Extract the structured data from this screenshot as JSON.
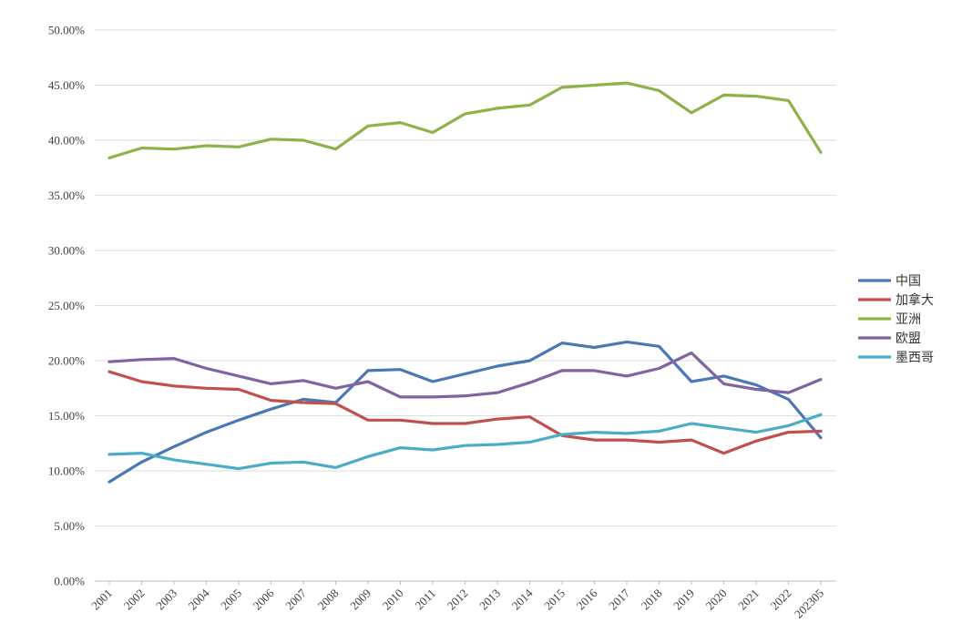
{
  "chart_data": {
    "type": "line",
    "categories": [
      "2001",
      "2002",
      "2003",
      "2004",
      "2005",
      "2006",
      "2007",
      "2008",
      "2009",
      "2010",
      "2011",
      "2012",
      "2013",
      "2014",
      "2015",
      "2016",
      "2017",
      "2018",
      "2019",
      "2020",
      "2021",
      "2022",
      "202305"
    ],
    "ylim": [
      0,
      50
    ],
    "yticks": [
      "0.00%",
      "5.00%",
      "10.00%",
      "15.00%",
      "20.00%",
      "25.00%",
      "30.00%",
      "35.00%",
      "40.00%",
      "45.00%",
      "50.00%"
    ],
    "grid": true,
    "legend_position": "right",
    "series": [
      {
        "name": "中国",
        "color": "#4a78b4",
        "values": [
          9.0,
          10.8,
          12.2,
          13.5,
          14.6,
          15.6,
          16.5,
          16.2,
          19.1,
          19.2,
          18.1,
          18.8,
          19.5,
          20.0,
          21.6,
          21.2,
          21.7,
          21.3,
          18.1,
          18.6,
          17.8,
          16.5,
          13.0
        ]
      },
      {
        "name": "加拿大",
        "color": "#c0504d",
        "values": [
          19.0,
          18.1,
          17.7,
          17.5,
          17.4,
          16.4,
          16.2,
          16.1,
          14.6,
          14.6,
          14.3,
          14.3,
          14.7,
          14.9,
          13.2,
          12.8,
          12.8,
          12.6,
          12.8,
          11.6,
          12.7,
          13.5,
          13.6
        ]
      },
      {
        "name": "亚洲",
        "color": "#8eb24a",
        "values": [
          38.4,
          39.3,
          39.2,
          39.5,
          39.4,
          40.1,
          40.0,
          39.2,
          41.3,
          41.6,
          40.7,
          42.4,
          42.9,
          43.2,
          44.8,
          45.0,
          45.2,
          44.5,
          42.5,
          44.1,
          44.0,
          43.6,
          38.9
        ]
      },
      {
        "name": "欧盟",
        "color": "#8064a2",
        "values": [
          19.9,
          20.1,
          20.2,
          19.3,
          18.6,
          17.9,
          18.2,
          17.5,
          18.1,
          16.7,
          16.7,
          16.8,
          17.1,
          18.0,
          19.1,
          19.1,
          18.6,
          19.3,
          20.7,
          17.9,
          17.4,
          17.1,
          18.3
        ]
      },
      {
        "name": "墨西哥",
        "color": "#4bacc6",
        "values": [
          11.5,
          11.6,
          11.0,
          10.6,
          10.2,
          10.7,
          10.8,
          10.3,
          11.3,
          12.1,
          11.9,
          12.3,
          12.4,
          12.6,
          13.3,
          13.5,
          13.4,
          13.6,
          14.3,
          13.9,
          13.5,
          14.1,
          15.1
        ]
      }
    ]
  }
}
